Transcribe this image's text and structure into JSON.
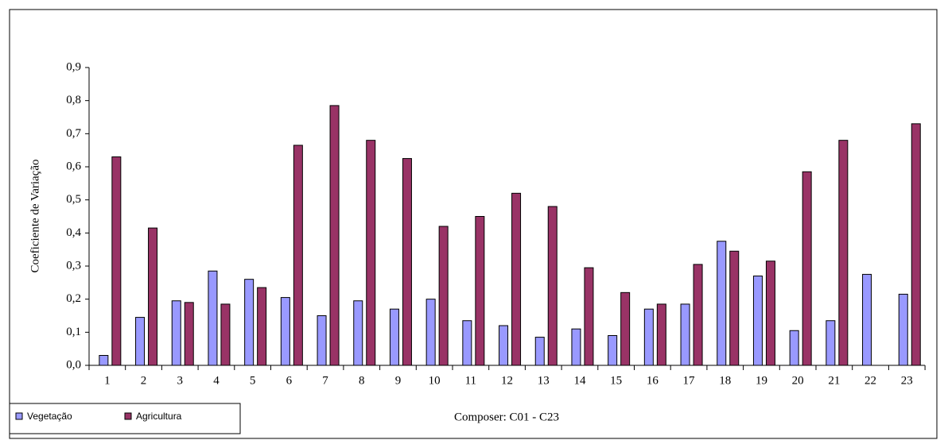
{
  "chart_data": {
    "type": "bar",
    "y_label": "Coeficiente de Variação",
    "x_label": "Composer: C01 - C23",
    "categories": [
      "1",
      "2",
      "3",
      "4",
      "5",
      "6",
      "7",
      "8",
      "9",
      "10",
      "11",
      "12",
      "13",
      "14",
      "15",
      "16",
      "17",
      "18",
      "19",
      "20",
      "21",
      "22",
      "23"
    ],
    "series": [
      {
        "name": "Vegetação",
        "color": "#9999ff",
        "values": [
          0.03,
          0.145,
          0.195,
          0.285,
          0.26,
          0.205,
          0.15,
          0.195,
          0.17,
          0.2,
          0.135,
          0.12,
          0.085,
          0.11,
          0.09,
          0.17,
          0.185,
          0.375,
          0.27,
          0.105,
          0.135,
          0.275,
          0.215
        ]
      },
      {
        "name": "Agricultura",
        "color": "#993366",
        "values": [
          0.63,
          0.415,
          0.19,
          0.185,
          0.235,
          0.665,
          0.785,
          0.68,
          0.625,
          0.42,
          0.45,
          0.52,
          0.48,
          0.295,
          0.22,
          0.185,
          0.305,
          0.345,
          0.315,
          0.585,
          0.68,
          null,
          0.73
        ]
      }
    ],
    "ylim": [
      0,
      0.9
    ],
    "yticks": [
      {
        "value": 0,
        "label": "0,0"
      },
      {
        "value": 0.1,
        "label": "0,1"
      },
      {
        "value": 0.2,
        "label": "0,2"
      },
      {
        "value": 0.3,
        "label": "0,3"
      },
      {
        "value": 0.4,
        "label": "0,4"
      },
      {
        "value": 0.5,
        "label": "0,5"
      },
      {
        "value": 0.6,
        "label": "0,6"
      },
      {
        "value": 0.7,
        "label": "0,7"
      },
      {
        "value": 0.8,
        "label": "0,8"
      },
      {
        "value": 0.9,
        "label": "0,9"
      }
    ]
  }
}
